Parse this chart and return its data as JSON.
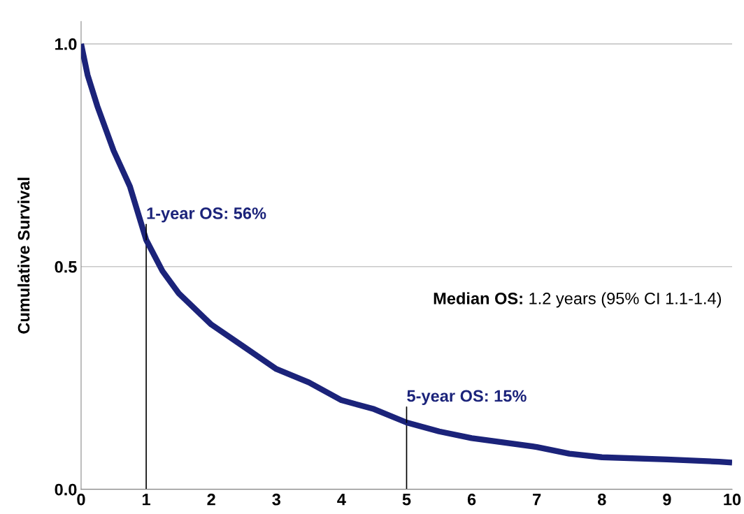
{
  "chart_data": {
    "type": "line",
    "ylabel": "Cumulative Survival",
    "x": [
      0,
      0.1,
      0.25,
      0.5,
      0.75,
      1.0,
      1.25,
      1.5,
      2,
      2.5,
      3,
      3.5,
      4,
      4.5,
      5,
      5.5,
      6,
      7,
      7.5,
      8,
      9,
      9.8,
      10
    ],
    "series": [
      {
        "color": "#1b237a",
        "values": [
          1.0,
          0.93,
          0.86,
          0.76,
          0.68,
          0.56,
          0.49,
          0.44,
          0.37,
          0.32,
          0.27,
          0.24,
          0.2,
          0.18,
          0.15,
          0.13,
          0.115,
          0.095,
          0.08,
          0.072,
          0.067,
          0.062,
          0.06
        ]
      }
    ],
    "xlim": [
      0,
      10
    ],
    "xticks": [
      0,
      1,
      2,
      3,
      4,
      5,
      6,
      7,
      8,
      9,
      10
    ],
    "ylim": [
      0,
      1.05
    ],
    "yticks": [
      {
        "value": 0,
        "label": "0.0"
      },
      {
        "value": 0.5,
        "label": "0.5"
      },
      {
        "value": 1,
        "label": "1.0"
      }
    ],
    "grid": "y",
    "marker": "none",
    "line_style": "solid",
    "annotations": [
      {
        "text": "1-year OS: 56%",
        "x": 1,
        "y": 0.56
      },
      {
        "text": "5-year OS: 15%",
        "x": 5,
        "y": 0.15
      },
      "Median OS: 1.2 years (95% CI 1.1-1.4)"
    ]
  }
}
